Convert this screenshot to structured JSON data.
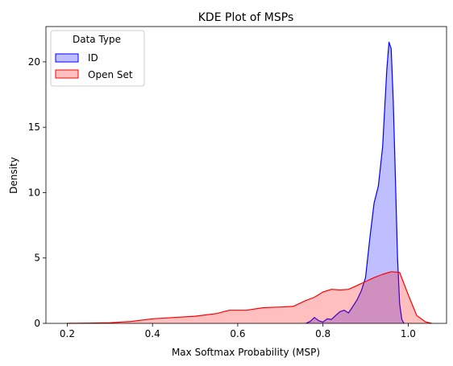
{
  "chart_data": {
    "type": "area",
    "title": "KDE Plot of MSPs",
    "xlabel": "Max Softmax Probability (MSP)",
    "ylabel": "Density",
    "xlim": [
      0.15,
      1.09
    ],
    "ylim": [
      0,
      22.7
    ],
    "x_ticks": [
      0.2,
      0.4,
      0.6,
      0.8,
      1.0
    ],
    "x_tick_labels": [
      "0.2",
      "0.4",
      "0.6",
      "0.8",
      "1.0"
    ],
    "y_ticks": [
      0,
      5,
      10,
      15,
      20
    ],
    "y_tick_labels": [
      "0",
      "5",
      "10",
      "15",
      "20"
    ],
    "grid": false,
    "legend": {
      "title": "Data Type",
      "placement": "top-left"
    },
    "series": [
      {
        "name": "ID",
        "line_color": "#0000ff",
        "fill_color": "#0000ff",
        "fill_alpha": 0.25,
        "x": [
          0.76,
          0.77,
          0.78,
          0.79,
          0.8,
          0.81,
          0.82,
          0.83,
          0.84,
          0.85,
          0.86,
          0.87,
          0.88,
          0.89,
          0.9,
          0.91,
          0.92,
          0.93,
          0.94,
          0.945,
          0.95,
          0.955,
          0.96,
          0.965,
          0.97,
          0.975,
          0.98,
          0.985,
          0.99
        ],
        "y": [
          0,
          0.15,
          0.45,
          0.2,
          0.1,
          0.35,
          0.3,
          0.6,
          0.9,
          1.0,
          0.8,
          1.3,
          1.8,
          2.5,
          3.5,
          6.5,
          9.2,
          10.5,
          13.5,
          16.5,
          19.5,
          21.5,
          21.0,
          17.0,
          11.0,
          5.0,
          1.5,
          0.3,
          0
        ]
      },
      {
        "name": "Open Set",
        "line_color": "#ff0000",
        "fill_color": "#ff0000",
        "fill_alpha": 0.25,
        "x": [
          0.2,
          0.25,
          0.3,
          0.35,
          0.4,
          0.45,
          0.5,
          0.55,
          0.58,
          0.62,
          0.66,
          0.7,
          0.73,
          0.76,
          0.78,
          0.8,
          0.82,
          0.84,
          0.86,
          0.88,
          0.9,
          0.92,
          0.94,
          0.96,
          0.98,
          1.0,
          1.02,
          1.04,
          1.055
        ],
        "y": [
          0.0,
          0.02,
          0.05,
          0.15,
          0.35,
          0.45,
          0.55,
          0.75,
          1.0,
          1.0,
          1.2,
          1.25,
          1.3,
          1.75,
          2.0,
          2.4,
          2.6,
          2.55,
          2.6,
          2.9,
          3.2,
          3.5,
          3.75,
          3.95,
          3.9,
          2.2,
          0.6,
          0.12,
          0.0
        ]
      }
    ]
  }
}
